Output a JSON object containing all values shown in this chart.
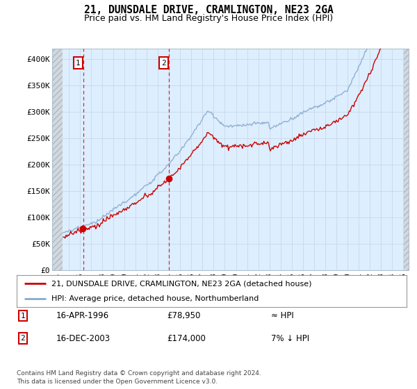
{
  "title": "21, DUNSDALE DRIVE, CRAMLINGTON, NE23 2GA",
  "subtitle": "Price paid vs. HM Land Registry's House Price Index (HPI)",
  "sale1_date": 1996.29,
  "sale1_price": 78950,
  "sale2_date": 2003.96,
  "sale2_price": 174000,
  "legend_line1": "21, DUNSDALE DRIVE, CRAMLINGTON, NE23 2GA (detached house)",
  "legend_line2": "HPI: Average price, detached house, Northumberland",
  "ann1_date": "16-APR-1996",
  "ann1_price": "£78,950",
  "ann1_hpi": "≈ HPI",
  "ann2_date": "16-DEC-2003",
  "ann2_price": "£174,000",
  "ann2_hpi": "7% ↓ HPI",
  "footnote": "Contains HM Land Registry data © Crown copyright and database right 2024.\nThis data is licensed under the Open Government Licence v3.0.",
  "bg_color": "#ddeeff",
  "line_color_red": "#cc0000",
  "line_color_blue": "#88aacc",
  "grid_color": "#c8d8e8",
  "xlim_left": 1993.5,
  "xlim_right": 2025.5,
  "ylim_bottom": 0,
  "ylim_top": 420000,
  "yticks": [
    0,
    50000,
    100000,
    150000,
    200000,
    250000,
    300000,
    350000,
    400000
  ],
  "ytick_labels": [
    "£0",
    "£50K",
    "£100K",
    "£150K",
    "£200K",
    "£250K",
    "£300K",
    "£350K",
    "£400K"
  ],
  "hatch_end": 1994.42,
  "hatch_start_right": 2025.08
}
